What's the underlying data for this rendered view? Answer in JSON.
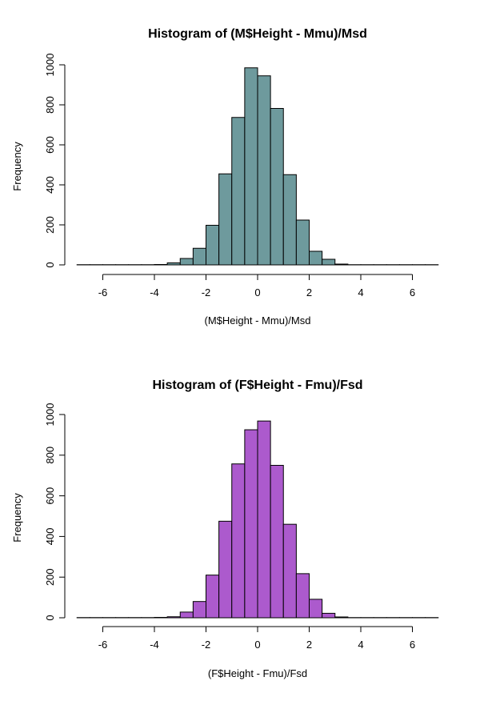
{
  "chart_data": [
    {
      "type": "bar",
      "title": "Histogram of (M$Height - Mmu)/Msd",
      "xlabel": "(M$Height - Mmu)/Msd",
      "ylabel": "Frequency",
      "xlim": [
        -7,
        7
      ],
      "ylim": [
        0,
        1000
      ],
      "xticks": [
        -6,
        -4,
        -2,
        0,
        2,
        4,
        6
      ],
      "xtick_labels": [
        "-6",
        "-4",
        "-2",
        "0",
        "2",
        "4",
        "6"
      ],
      "yticks": [
        0,
        200,
        400,
        600,
        800,
        1000
      ],
      "ytick_labels": [
        "0",
        "200",
        "400",
        "600",
        "800",
        "1000"
      ],
      "color": "#6e9a9d",
      "bin_width": 0.5,
      "bins_start": [
        -7.0,
        -6.5,
        -6.0,
        -5.5,
        -5.0,
        -4.5,
        -4.0,
        -3.5,
        -3.0,
        -2.5,
        -2.0,
        -1.5,
        -1.0,
        -0.5,
        0.0,
        0.5,
        1.0,
        1.5,
        2.0,
        2.5,
        3.0,
        3.5,
        4.0,
        4.5,
        5.0,
        5.5,
        6.0,
        6.5
      ],
      "values": [
        1,
        1,
        1,
        1,
        1,
        1,
        2,
        10,
        32,
        83,
        198,
        455,
        737,
        985,
        945,
        782,
        451,
        224,
        68,
        28,
        4,
        1,
        1,
        1,
        1,
        1,
        1,
        1
      ],
      "grid": false
    },
    {
      "type": "bar",
      "title": "Histogram of (F$Height - Fmu)/Fsd",
      "xlabel": "(F$Height - Fmu)/Fsd",
      "ylabel": "Frequency",
      "xlim": [
        -7,
        7
      ],
      "ylim": [
        0,
        1000
      ],
      "xticks": [
        -6,
        -4,
        -2,
        0,
        2,
        4,
        6
      ],
      "xtick_labels": [
        "-6",
        "-4",
        "-2",
        "0",
        "2",
        "4",
        "6"
      ],
      "yticks": [
        0,
        200,
        400,
        600,
        800,
        1000
      ],
      "ytick_labels": [
        "0",
        "200",
        "400",
        "600",
        "800",
        "1000"
      ],
      "color": "#ac5acd",
      "bin_width": 0.5,
      "bins_start": [
        -7.0,
        -6.5,
        -6.0,
        -5.5,
        -5.0,
        -4.5,
        -4.0,
        -3.5,
        -3.0,
        -2.5,
        -2.0,
        -1.5,
        -1.0,
        -0.5,
        0.0,
        0.5,
        1.0,
        1.5,
        2.0,
        2.5,
        3.0,
        3.5,
        4.0,
        4.5,
        5.0,
        5.5,
        6.0,
        6.5
      ],
      "values": [
        1,
        1,
        1,
        1,
        1,
        1,
        2,
        5,
        28,
        80,
        210,
        475,
        757,
        925,
        968,
        750,
        460,
        217,
        91,
        22,
        4,
        1,
        1,
        1,
        1,
        1,
        1,
        1
      ],
      "grid": false
    }
  ]
}
